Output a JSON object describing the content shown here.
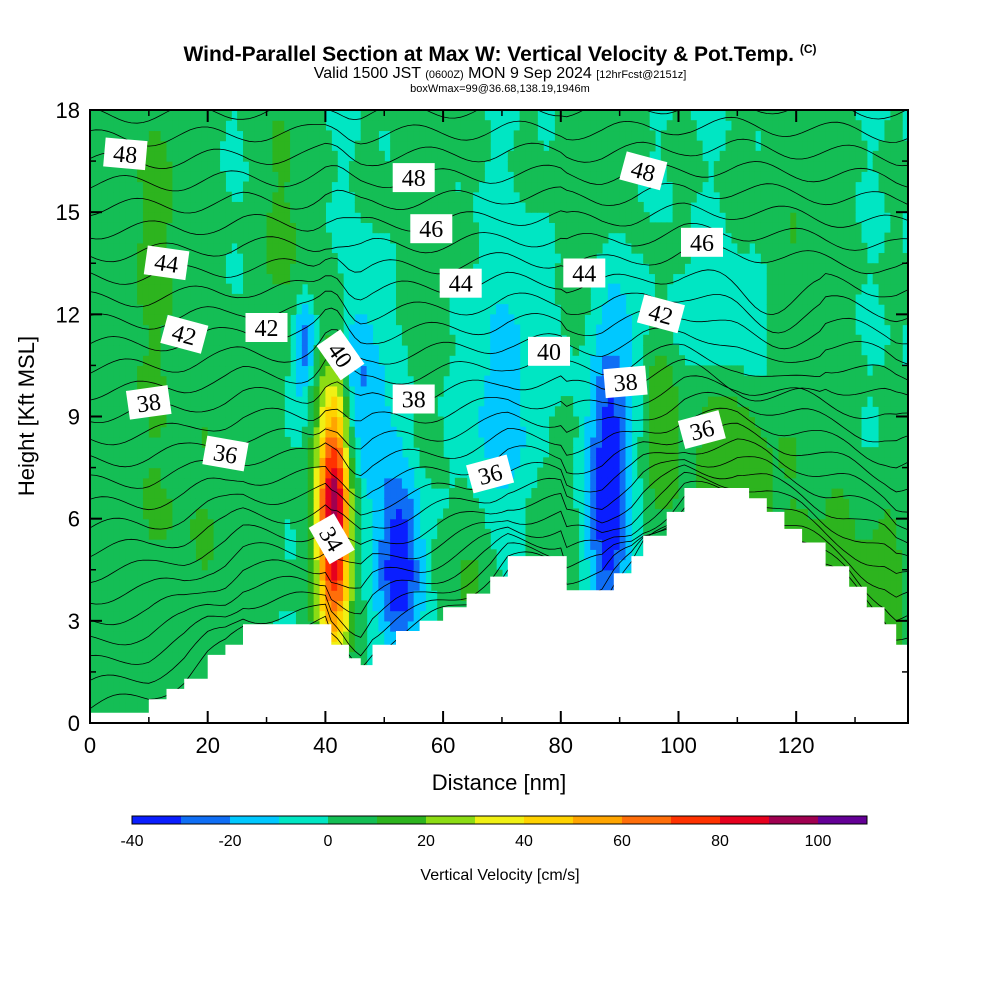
{
  "chart_data": {
    "type": "heatmap",
    "title": "Wind-Parallel Section at Max W: Vertical Velocity & Pot.Temp.",
    "title_mark": "(C)",
    "subtitle_prefix": "Valid 1500 JST",
    "subtitle_z": "(0600Z)",
    "subtitle_date": "MON 9 Sep 2024",
    "subtitle_fcst": "[12hrFcst@2151z]",
    "subtitle2": "boxWmax=99@36.68,138.19,1946m",
    "xlabel": "Distance [nm]",
    "ylabel": "Height [Kft MSL]",
    "xlim": [
      0,
      139
    ],
    "ylim": [
      0,
      18
    ],
    "x_ticks": [
      0,
      20,
      40,
      60,
      80,
      100,
      120
    ],
    "y_ticks": [
      0,
      3,
      6,
      9,
      12,
      15,
      18
    ],
    "colorbar": {
      "label": "Vertical Velocity [cm/s]",
      "tick_values": [
        -40,
        -20,
        0,
        20,
        40,
        60,
        80,
        100
      ],
      "levels": [
        -40,
        -30,
        -20,
        -10,
        0,
        10,
        20,
        30,
        40,
        50,
        60,
        70,
        80,
        90,
        100,
        110
      ],
      "colors": [
        "#0a1eff",
        "#0f6ef5",
        "#00c8ff",
        "#00e6c3",
        "#14be55",
        "#2db41e",
        "#8cdc14",
        "#f0f014",
        "#ffd200",
        "#ffa500",
        "#ff6e0a",
        "#ff3200",
        "#e6001e",
        "#a00050",
        "#640096"
      ]
    },
    "w_field_features": [
      {
        "x": 41.5,
        "y": 6.0,
        "peak_w": 99
      },
      {
        "x": 53.0,
        "y": 4.5,
        "peak_w": -38
      },
      {
        "x": 88.0,
        "y": 6.0,
        "peak_w": -35
      },
      {
        "x": 97.0,
        "y": 9.0,
        "peak_w": 22
      }
    ],
    "terrain": [
      {
        "x": 0,
        "h": 0.3
      },
      {
        "x": 10,
        "h": 0.7
      },
      {
        "x": 13,
        "h": 1.0
      },
      {
        "x": 16,
        "h": 1.3
      },
      {
        "x": 20,
        "h": 2.0
      },
      {
        "x": 23,
        "h": 2.3
      },
      {
        "x": 26,
        "h": 2.9
      },
      {
        "x": 40,
        "h": 2.9
      },
      {
        "x": 41,
        "h": 2.3
      },
      {
        "x": 44,
        "h": 1.9
      },
      {
        "x": 46,
        "h": 1.7
      },
      {
        "x": 48,
        "h": 2.3
      },
      {
        "x": 52,
        "h": 2.7
      },
      {
        "x": 56,
        "h": 3.0
      },
      {
        "x": 60,
        "h": 3.4
      },
      {
        "x": 64,
        "h": 3.8
      },
      {
        "x": 68,
        "h": 4.3
      },
      {
        "x": 71,
        "h": 4.9
      },
      {
        "x": 80,
        "h": 4.9
      },
      {
        "x": 81,
        "h": 3.9
      },
      {
        "x": 87,
        "h": 3.9
      },
      {
        "x": 89,
        "h": 4.4
      },
      {
        "x": 92,
        "h": 4.9
      },
      {
        "x": 94,
        "h": 5.5
      },
      {
        "x": 98,
        "h": 6.2
      },
      {
        "x": 101,
        "h": 6.9
      },
      {
        "x": 110,
        "h": 6.9
      },
      {
        "x": 112,
        "h": 6.6
      },
      {
        "x": 115,
        "h": 6.2
      },
      {
        "x": 118,
        "h": 5.7
      },
      {
        "x": 121,
        "h": 5.3
      },
      {
        "x": 125,
        "h": 4.6
      },
      {
        "x": 129,
        "h": 4.0
      },
      {
        "x": 132,
        "h": 3.4
      },
      {
        "x": 135,
        "h": 2.9
      },
      {
        "x": 137,
        "h": 2.3
      },
      {
        "x": 139,
        "h": 2.3
      }
    ],
    "contour_labels": [
      {
        "text": "48",
        "x": 6,
        "y": 16.7,
        "angle": 5
      },
      {
        "text": "48",
        "x": 55,
        "y": 16.0,
        "angle": 0
      },
      {
        "text": "48",
        "x": 94,
        "y": 16.2,
        "angle": 15
      },
      {
        "text": "46",
        "x": 58,
        "y": 14.5,
        "angle": 0
      },
      {
        "text": "46",
        "x": 104,
        "y": 14.1,
        "angle": 0
      },
      {
        "text": "44",
        "x": 13,
        "y": 13.5,
        "angle": 8
      },
      {
        "text": "44",
        "x": 63,
        "y": 12.9,
        "angle": 0
      },
      {
        "text": "44",
        "x": 84,
        "y": 13.2,
        "angle": 0
      },
      {
        "text": "42",
        "x": 16,
        "y": 11.4,
        "angle": 15
      },
      {
        "text": "42",
        "x": 30,
        "y": 11.6,
        "angle": 0
      },
      {
        "text": "42",
        "x": 97,
        "y": 12.0,
        "angle": 15
      },
      {
        "text": "40",
        "x": 42.5,
        "y": 10.8,
        "angle": 55
      },
      {
        "text": "40",
        "x": 78,
        "y": 10.9,
        "angle": 0
      },
      {
        "text": "38",
        "x": 10,
        "y": 9.4,
        "angle": -8
      },
      {
        "text": "38",
        "x": 55,
        "y": 9.5,
        "angle": 0
      },
      {
        "text": "38",
        "x": 91,
        "y": 10.0,
        "angle": -5
      },
      {
        "text": "36",
        "x": 23,
        "y": 7.9,
        "angle": 10
      },
      {
        "text": "36",
        "x": 68,
        "y": 7.3,
        "angle": -15
      },
      {
        "text": "36",
        "x": 104,
        "y": 8.6,
        "angle": -15
      },
      {
        "text": "34",
        "x": 41,
        "y": 5.4,
        "angle": 60
      }
    ]
  }
}
